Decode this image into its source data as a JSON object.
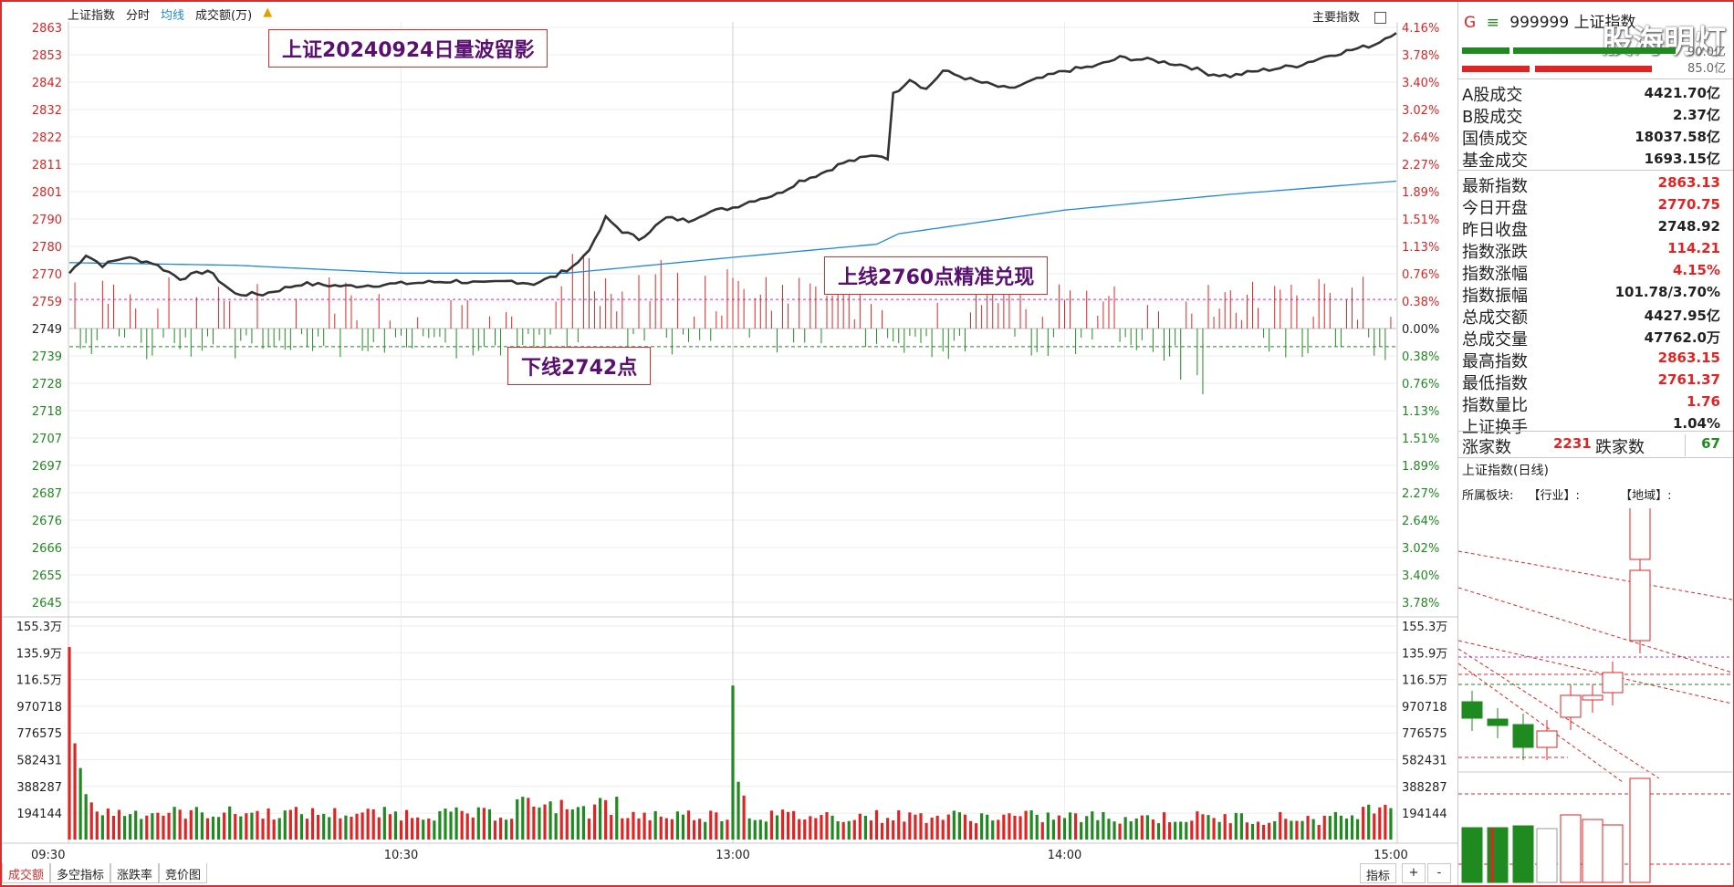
{
  "topbar": {
    "index_name": "上证指数",
    "mode": "分时",
    "avg_line": "均线",
    "volume_label": "成交额(万)",
    "main_index_btn": "主要指数"
  },
  "left_axis": [
    "2863",
    "2853",
    "2842",
    "2832",
    "2822",
    "2811",
    "2801",
    "2790",
    "2780",
    "2770",
    "2759",
    "2749",
    "2739",
    "2728",
    "2718",
    "2707",
    "2697",
    "2687",
    "2676",
    "2666",
    "2655",
    "2645"
  ],
  "right_axis": [
    "4.16%",
    "3.78%",
    "3.40%",
    "3.02%",
    "2.64%",
    "2.27%",
    "1.89%",
    "1.51%",
    "1.13%",
    "0.76%",
    "0.38%",
    "0.00%",
    "0.38%",
    "0.76%",
    "1.13%",
    "1.51%",
    "1.89%",
    "2.27%",
    "2.64%",
    "3.02%",
    "3.40%",
    "3.78%"
  ],
  "vol_axis": [
    "155.3万",
    "135.9万",
    "116.5万",
    "970718",
    "776575",
    "582431",
    "388287",
    "194144"
  ],
  "time_axis": [
    "09:30",
    "10:30",
    "13:00",
    "14:00",
    "15:00"
  ],
  "annotations": {
    "title": "上证20240924日量波留影",
    "upper": "上线2760点精准兑现",
    "lower": "下线2742点"
  },
  "bottom_tabs": [
    "成交额",
    "多空指标",
    "涨跌率",
    "竞价图"
  ],
  "bottom_right": {
    "indicator": "指标",
    "plus": "+",
    "minus": "-"
  },
  "colors": {
    "up": "#e02424",
    "down": "#1f8a1f",
    "price_line": "#333333",
    "avg_line": "#1f88d8",
    "frame": "#d03030"
  },
  "panel": {
    "header": {
      "code_prefix": "G",
      "menu_icon": "menu-icon",
      "code": "999999",
      "name": "上证指数"
    },
    "bar_scale": {
      "top": "90.0亿",
      "bottom": "85.0亿"
    },
    "stats1": [
      {
        "label": "A股成交",
        "value": "4421.70亿"
      },
      {
        "label": "B股成交",
        "value": "2.37亿"
      },
      {
        "label": "国债成交",
        "value": "18037.58亿"
      },
      {
        "label": "基金成交",
        "value": "1693.15亿"
      }
    ],
    "stats2": [
      {
        "label": "最新指数",
        "value": "2863.13",
        "color": "red"
      },
      {
        "label": "今日开盘",
        "value": "2770.75",
        "color": "red"
      },
      {
        "label": "昨日收盘",
        "value": "2748.92",
        "color": "dark"
      },
      {
        "label": "指数涨跌",
        "value": "114.21",
        "color": "red"
      },
      {
        "label": "指数涨幅",
        "value": "4.15%",
        "color": "red"
      },
      {
        "label": "指数振幅",
        "value": "101.78/3.70%",
        "color": "dark"
      },
      {
        "label": "总成交额",
        "value": "4427.95亿",
        "color": "dark"
      },
      {
        "label": "总成交量",
        "value": "47762.0万",
        "color": "dark"
      },
      {
        "label": "最高指数",
        "value": "2863.15",
        "color": "red"
      },
      {
        "label": "最低指数",
        "value": "2761.37",
        "color": "red"
      },
      {
        "label": "指数量比",
        "value": "1.76",
        "color": "red"
      },
      {
        "label": "上证换手",
        "value": "1.04%",
        "color": "dark"
      }
    ],
    "breadth": {
      "up_label": "涨家数",
      "up_value": "2231",
      "down_label": "跌家数",
      "down_value": "67"
    },
    "daily_title": "上证指数(日线)",
    "sector_row": {
      "label": "所属板块:",
      "industry": "【行业】:",
      "region": "【地域】:"
    },
    "watermark": "股海明灯"
  }
}
